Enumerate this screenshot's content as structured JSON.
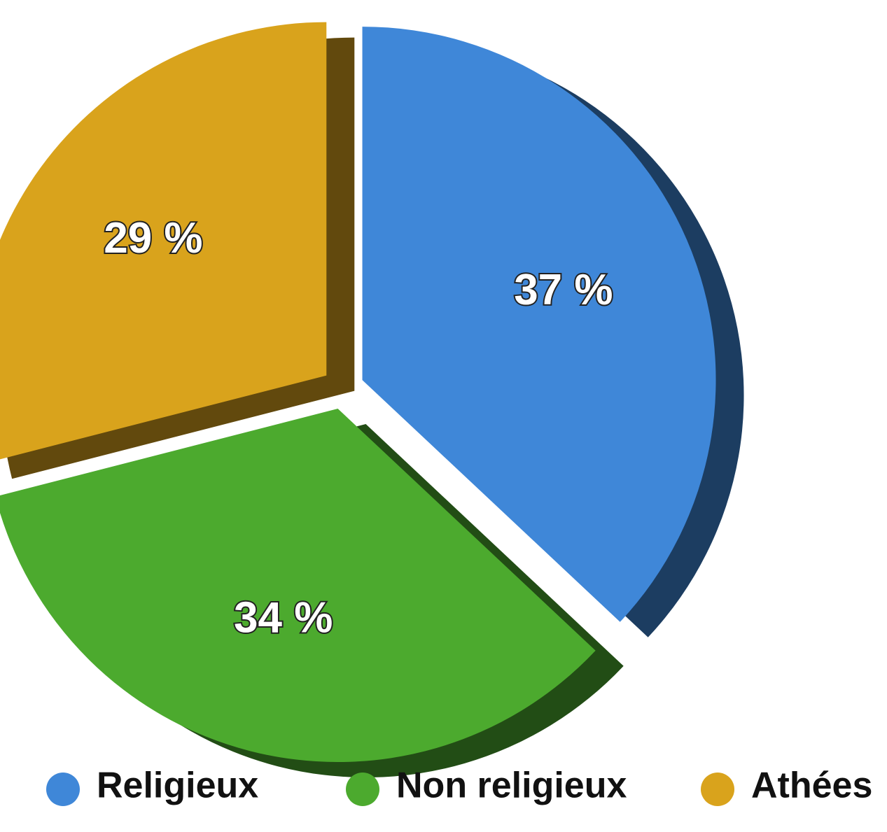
{
  "chart_data": {
    "type": "pie",
    "categories": [
      "Religieux",
      "Non religieux",
      "Athées"
    ],
    "values": [
      37,
      34,
      29
    ],
    "value_labels": [
      "37 %",
      "34 %",
      "29 %"
    ],
    "colors": [
      "#3f87d8",
      "#4caa2e",
      "#d9a31c"
    ],
    "legend": "bottom"
  }
}
